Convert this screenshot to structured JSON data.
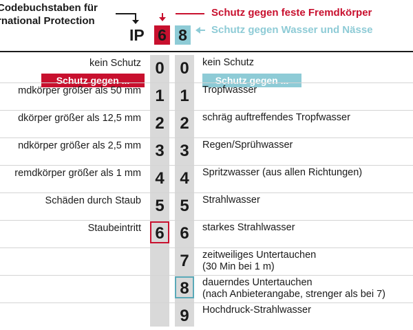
{
  "header": {
    "left_line1": "Codebuchstaben für",
    "left_line2": "rnational Protection",
    "ip": "IP",
    "first_digit": "6",
    "second_digit": "8",
    "first_desc": "Schutz gegen feste Fremdkörper",
    "second_desc": "Schutz gegen Wasser und Nässe"
  },
  "colors": {
    "red": "#c8102e",
    "blue": "#8ecbd6",
    "column_grey": "#d9d9d9"
  },
  "solid_label": "Schutz gegen ...",
  "water_label": "Schutz gegen ...",
  "digits": [
    "0",
    "1",
    "2",
    "3",
    "4",
    "5",
    "6",
    "7",
    "8",
    "9"
  ],
  "solid_protection": [
    "kein Schutz",
    "mdkörper größer als 50 mm",
    "dkörper größer als 12,5 mm",
    "ndkörper größer als 2,5 mm",
    "remdkörper größer als 1 mm",
    "Schäden durch Staub",
    "Staubeintritt"
  ],
  "water_protection": [
    "kein Schutz",
    "Tropfwasser",
    "schräg auftreffendes Tropfwasser",
    "Regen/Sprühwasser",
    "Spritzwasser (aus allen Richtungen)",
    "Strahlwasser",
    "starkes Strahlwasser",
    {
      "line1": "zeitweiliges Untertauchen",
      "line2": "(30 Min bei 1 m)"
    },
    {
      "line1": "dauerndes Untertauchen",
      "line2": "(nach Anbieterangabe, strenger als bei 7)"
    },
    "Hochdruck-Strahlwasser"
  ],
  "highlighted": {
    "solid": "6",
    "water": "8"
  }
}
